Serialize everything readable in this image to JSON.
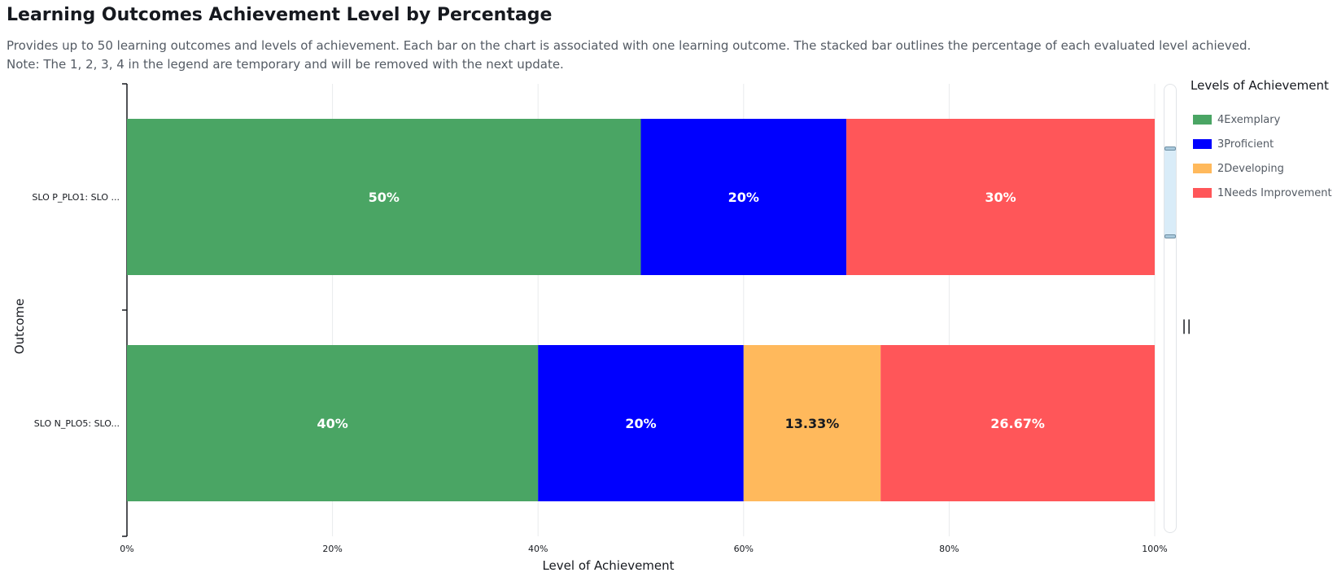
{
  "header": {
    "title": "Learning Outcomes Achievement Level by Percentage",
    "desc_line1": "Provides up to 50 learning outcomes and levels of achievement. Each bar on the chart is associated with one learning outcome. The stacked bar outlines the percentage of each evaluated level achieved.",
    "desc_line2": "Note: The 1, 2, 3, 4 in the legend are temporary and will be removed with the next update."
  },
  "legend": {
    "title": "Levels of Achievement"
  },
  "scrollbar": {
    "grip_glyph": "||"
  },
  "chart_data": {
    "type": "bar",
    "orientation": "horizontal",
    "stacked": true,
    "xlabel": "Level of Achievement",
    "ylabel": "Outcome",
    "xlim": [
      0,
      100
    ],
    "x_ticks": [
      "0%",
      "20%",
      "40%",
      "60%",
      "80%",
      "100%"
    ],
    "grid": "vertical",
    "legend_position": "right",
    "categories": [
      "SLO P_PLO1: SLO ...",
      "SLO N_PLO5: SLO..."
    ],
    "series": [
      {
        "name": "4Exemplary",
        "color": "#4aa564",
        "label_color": "#ffffff",
        "values": [
          50,
          40
        ],
        "labels": [
          "50%",
          "40%"
        ]
      },
      {
        "name": "3Proficient",
        "color": "#0000ff",
        "label_color": "#ffffff",
        "values": [
          20,
          20
        ],
        "labels": [
          "20%",
          "20%"
        ]
      },
      {
        "name": "2Developing",
        "color": "#ffb95c",
        "label_color": "#16191f",
        "values": [
          0,
          13.33
        ],
        "labels": [
          "",
          "13.33%"
        ]
      },
      {
        "name": "1Needs Improvement",
        "color": "#ff5659",
        "label_color": "#ffffff",
        "values": [
          30,
          26.67
        ],
        "labels": [
          "30%",
          "26.67%"
        ]
      }
    ]
  }
}
